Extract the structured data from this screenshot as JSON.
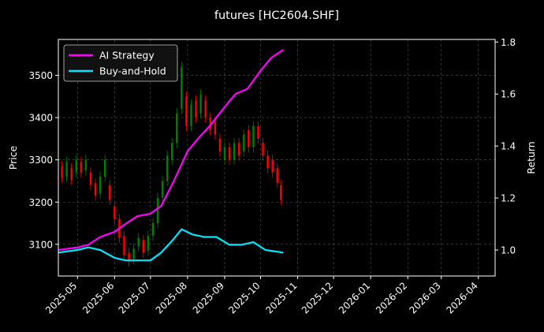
{
  "chart_data": {
    "type": "line",
    "title": "futures [HC2604.SHF]",
    "ylabel_left": "Price",
    "ylabel_right": "Return",
    "x_ticks": [
      "2025-05",
      "2025-06",
      "2025-07",
      "2025-08",
      "2025-09",
      "2025-10",
      "2025-11",
      "2025-12",
      "2026-01",
      "2026-02",
      "2026-03",
      "2026-04"
    ],
    "xlim": [
      "2025-04-15",
      "2026-04-15"
    ],
    "ylim_left": [
      3025,
      3585
    ],
    "ylim_right": [
      0.9,
      1.81
    ],
    "y_ticks_left": [
      3100,
      3200,
      3300,
      3400,
      3500
    ],
    "y_ticks_right": [
      1.0,
      1.2,
      1.4,
      1.6,
      1.8
    ],
    "grid": true,
    "legend_position": "top-left",
    "colors": {
      "background": "#000000",
      "ai": "#ff00ff",
      "bh": "#00e5ff",
      "up": "#008000",
      "down": "#ff0000",
      "grid": "#555555"
    },
    "series": [
      {
        "name": "AI Strategy",
        "axis": "right",
        "color": "#ff00ff",
        "points": [
          [
            "2025-04-15",
            1.0
          ],
          [
            "2025-05-01",
            1.01
          ],
          [
            "2025-05-10",
            1.02
          ],
          [
            "2025-05-20",
            1.05
          ],
          [
            "2025-06-01",
            1.07
          ],
          [
            "2025-06-10",
            1.1
          ],
          [
            "2025-06-20",
            1.13
          ],
          [
            "2025-07-01",
            1.14
          ],
          [
            "2025-07-10",
            1.17
          ],
          [
            "2025-07-20",
            1.26
          ],
          [
            "2025-08-01",
            1.38
          ],
          [
            "2025-08-10",
            1.43
          ],
          [
            "2025-08-20",
            1.48
          ],
          [
            "2025-09-01",
            1.55
          ],
          [
            "2025-09-10",
            1.6
          ],
          [
            "2025-09-20",
            1.62
          ],
          [
            "2025-10-01",
            1.69
          ],
          [
            "2025-10-10",
            1.74
          ],
          [
            "2025-10-20",
            1.77
          ]
        ]
      },
      {
        "name": "Buy-and-Hold",
        "axis": "right",
        "color": "#00e5ff",
        "points": [
          [
            "2025-04-15",
            0.99
          ],
          [
            "2025-05-01",
            1.0
          ],
          [
            "2025-05-10",
            1.01
          ],
          [
            "2025-05-20",
            1.0
          ],
          [
            "2025-06-01",
            0.97
          ],
          [
            "2025-06-10",
            0.96
          ],
          [
            "2025-06-20",
            0.96
          ],
          [
            "2025-07-01",
            0.96
          ],
          [
            "2025-07-10",
            0.99
          ],
          [
            "2025-07-20",
            1.04
          ],
          [
            "2025-07-27",
            1.08
          ],
          [
            "2025-08-05",
            1.06
          ],
          [
            "2025-08-15",
            1.05
          ],
          [
            "2025-08-25",
            1.05
          ],
          [
            "2025-09-05",
            1.02
          ],
          [
            "2025-09-15",
            1.02
          ],
          [
            "2025-09-25",
            1.03
          ],
          [
            "2025-10-05",
            1.0
          ],
          [
            "2025-10-20",
            0.99
          ]
        ]
      }
    ],
    "candles": [
      [
        "2025-04-18",
        3285,
        3258
      ],
      [
        "2025-04-22",
        3260,
        3295
      ],
      [
        "2025-04-26",
        3280,
        3252
      ],
      [
        "2025-04-30",
        3270,
        3300
      ],
      [
        "2025-05-04",
        3295,
        3270
      ],
      [
        "2025-05-08",
        3275,
        3300
      ],
      [
        "2025-05-12",
        3270,
        3240
      ],
      [
        "2025-05-16",
        3245,
        3215
      ],
      [
        "2025-05-20",
        3220,
        3260
      ],
      [
        "2025-05-24",
        3260,
        3300
      ],
      [
        "2025-05-28",
        3240,
        3205
      ],
      [
        "2025-06-01",
        3190,
        3160
      ],
      [
        "2025-06-05",
        3160,
        3115
      ],
      [
        "2025-06-09",
        3120,
        3075
      ],
      [
        "2025-06-13",
        3080,
        3060
      ],
      [
        "2025-06-17",
        3065,
        3090
      ],
      [
        "2025-06-21",
        3095,
        3115
      ],
      [
        "2025-06-25",
        3110,
        3080
      ],
      [
        "2025-06-29",
        3085,
        3120
      ],
      [
        "2025-07-03",
        3120,
        3150
      ],
      [
        "2025-07-07",
        3150,
        3210
      ],
      [
        "2025-07-11",
        3210,
        3250
      ],
      [
        "2025-07-15",
        3250,
        3310
      ],
      [
        "2025-07-19",
        3300,
        3340
      ],
      [
        "2025-07-23",
        3340,
        3410
      ],
      [
        "2025-07-27",
        3420,
        3520
      ],
      [
        "2025-07-31",
        3450,
        3380
      ],
      [
        "2025-08-04",
        3380,
        3430
      ],
      [
        "2025-08-08",
        3440,
        3400
      ],
      [
        "2025-08-12",
        3410,
        3455
      ],
      [
        "2025-08-16",
        3440,
        3400
      ],
      [
        "2025-08-20",
        3400,
        3370
      ],
      [
        "2025-08-24",
        3390,
        3360
      ],
      [
        "2025-08-28",
        3350,
        3320
      ],
      [
        "2025-09-01",
        3300,
        3330
      ],
      [
        "2025-09-05",
        3330,
        3300
      ],
      [
        "2025-09-09",
        3300,
        3340
      ],
      [
        "2025-09-13",
        3340,
        3310
      ],
      [
        "2025-09-17",
        3320,
        3360
      ],
      [
        "2025-09-21",
        3370,
        3330
      ],
      [
        "2025-09-25",
        3330,
        3380
      ],
      [
        "2025-09-29",
        3380,
        3350
      ],
      [
        "2025-10-03",
        3340,
        3310
      ],
      [
        "2025-10-07",
        3310,
        3280
      ],
      [
        "2025-10-11",
        3300,
        3270
      ],
      [
        "2025-10-15",
        3280,
        3245
      ],
      [
        "2025-10-18",
        3240,
        3205
      ]
    ]
  }
}
